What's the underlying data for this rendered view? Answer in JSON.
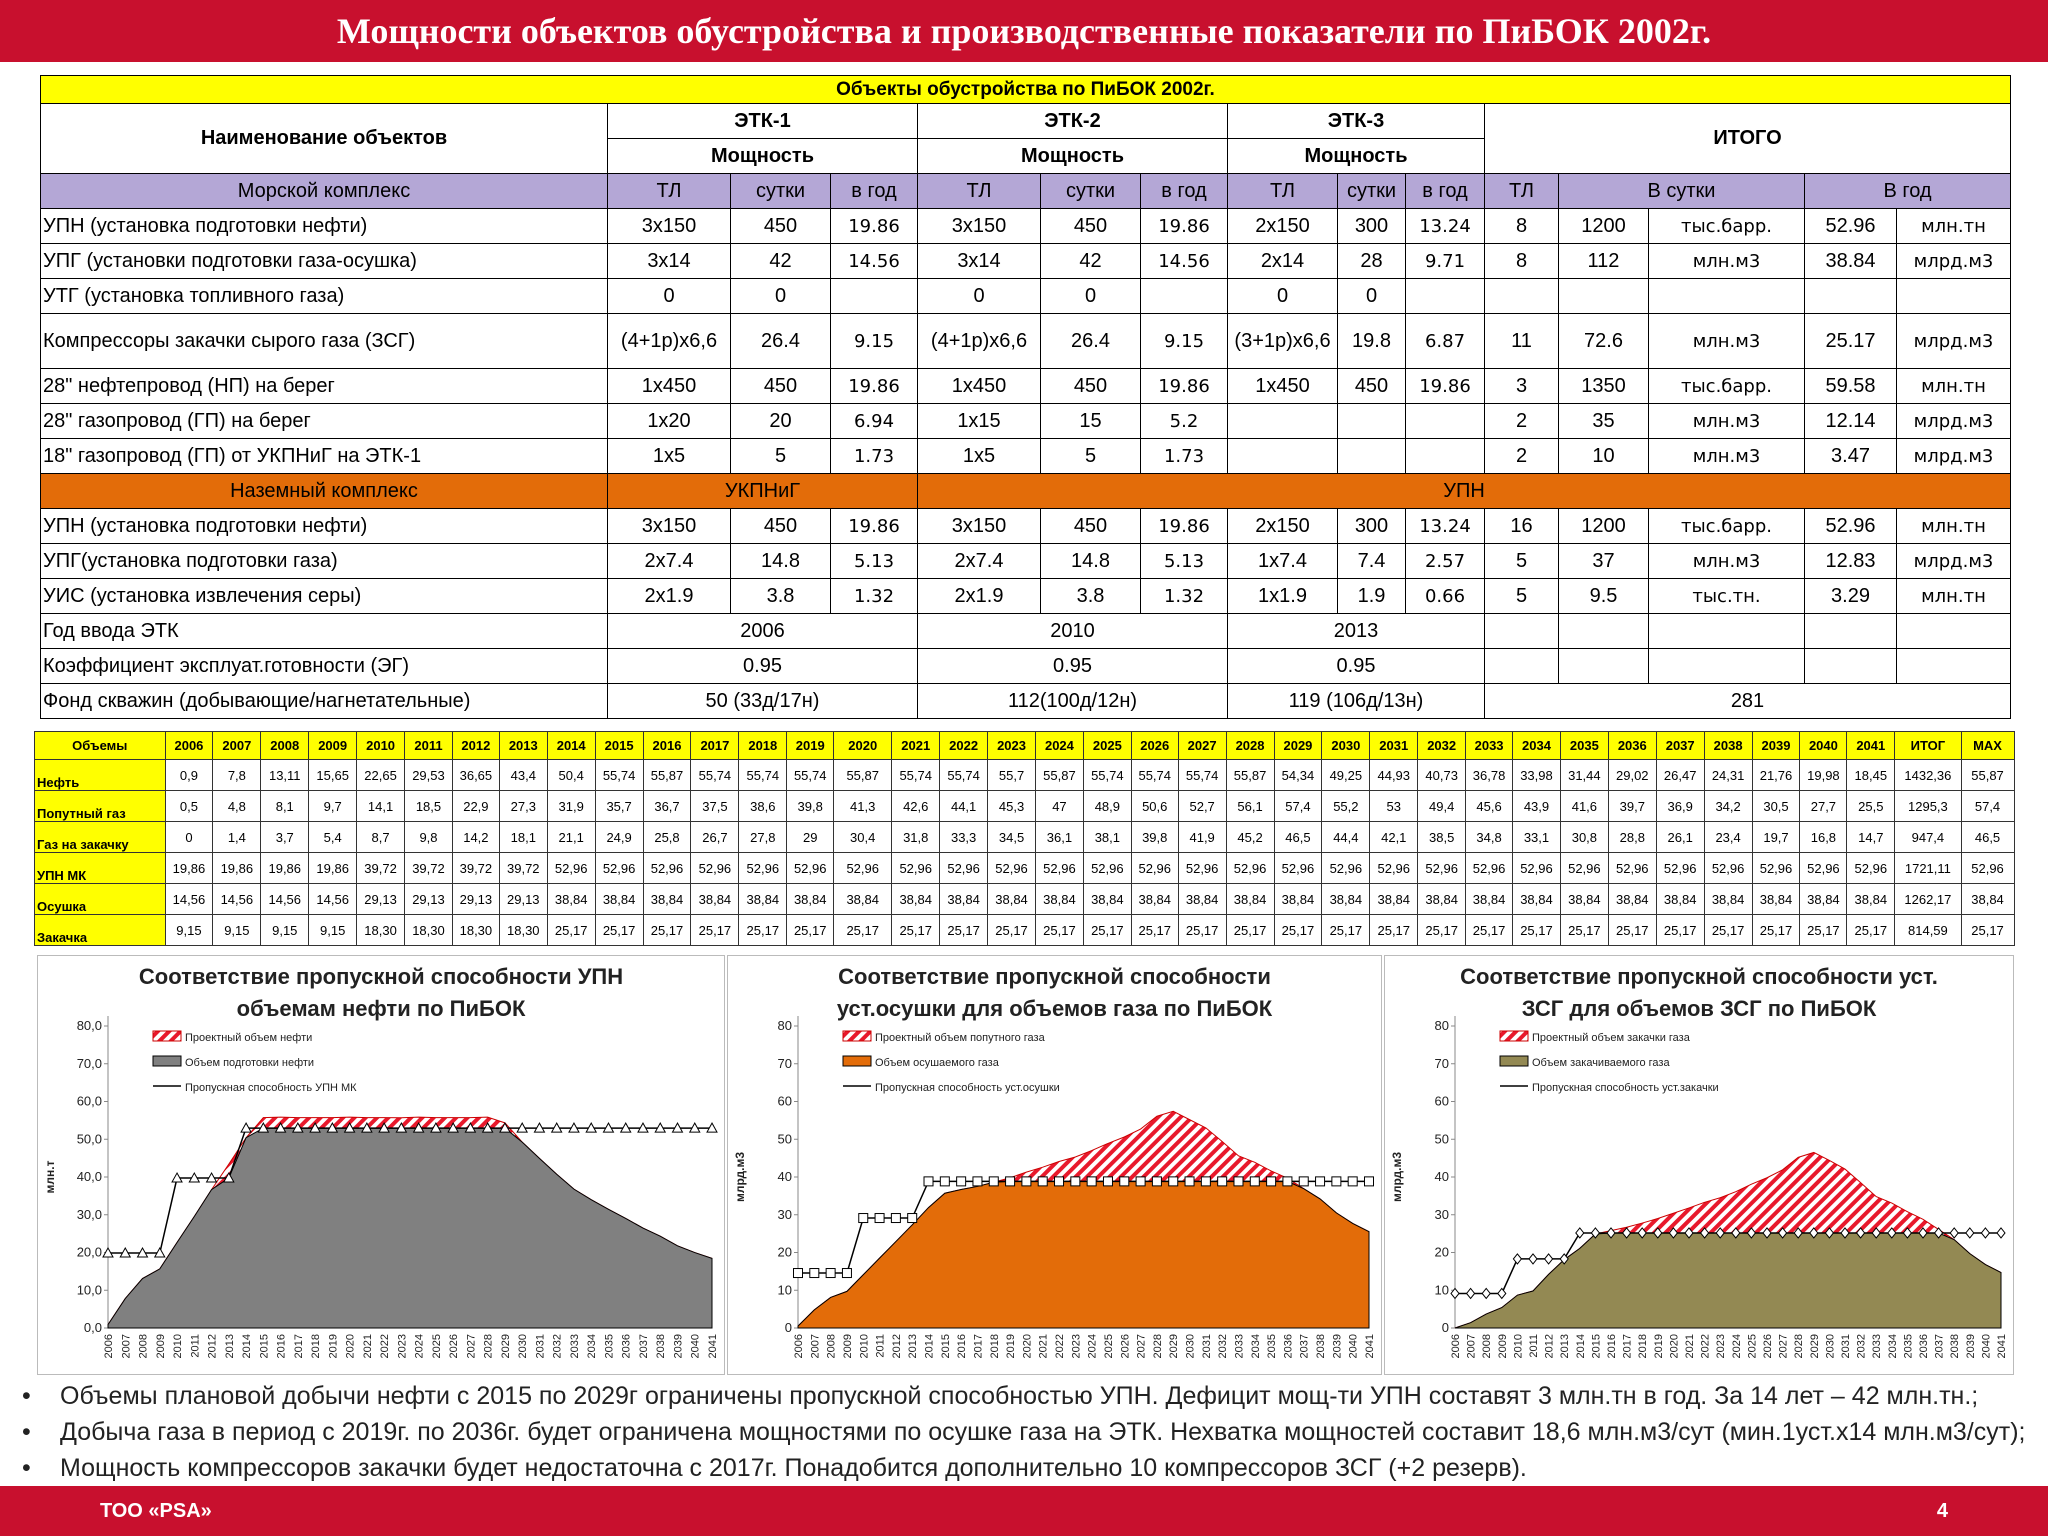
{
  "header": {
    "title": "Мощности объектов обустройства и производственные показатели по ПиБОК  2002г."
  },
  "footer": {
    "company": "ТОО «PSA»",
    "page": "4"
  },
  "objects_table": {
    "caption": "Объекты обустройства по ПиБОК 2002г.",
    "name_header": "Наименование объектов",
    "etk1": "ЭТК-1",
    "etk2": "ЭТК-2",
    "etk3": "ЭТК-3",
    "total": "ИТОГО",
    "power": "Мощность",
    "sea_complex": "Морской комплекс",
    "col_tl": "ТЛ",
    "col_day": "сутки",
    "col_year": "в год",
    "col_total_day": "В сутки",
    "col_total_year": "В год",
    "sea_rows": [
      {
        "name": "УПН (установка подготовки нефти)",
        "c": [
          "3х150",
          "450",
          "19.86",
          "3х150",
          "450",
          "19.86",
          "2х150",
          "300",
          "13.24",
          "8",
          "1200",
          "тыс.барр.",
          "52.96",
          "млн.тн"
        ]
      },
      {
        "name": "УПГ (установки подготовки газа-осушка)",
        "c": [
          "3х14",
          "42",
          "14.56",
          "3х14",
          "42",
          "14.56",
          "2х14",
          "28",
          "9.71",
          "8",
          "112",
          "млн.м3",
          "38.84",
          "млрд.м3"
        ]
      },
      {
        "name": "УТГ (установка топливного газа)",
        "c": [
          "0",
          "0",
          "",
          "0",
          "0",
          "",
          "0",
          "0",
          "",
          "",
          "",
          "",
          "",
          ""
        ]
      },
      {
        "name": "Компрессоры  закачки сырого газа (ЗСГ)",
        "c": [
          "(4+1р)х6,6",
          "26.4",
          "9.15",
          "(4+1р)х6,6",
          "26.4",
          "9.15",
          "(3+1р)х6,6",
          "19.8",
          "6.87",
          "11",
          "72.6",
          "млн.м3",
          "25.17",
          "млрд.м3"
        ]
      },
      {
        "name": "28\" нефтепровод (НП) на берег",
        "c": [
          "1х450",
          "450",
          "19.86",
          "1х450",
          "450",
          "19.86",
          "1х450",
          "450",
          "19.86",
          "3",
          "1350",
          "тыс.барр.",
          "59.58",
          "млн.тн"
        ]
      },
      {
        "name": "28\" газопровод (ГП) на берег",
        "c": [
          "1х20",
          "20",
          "6.94",
          "1х15",
          "15",
          "5.2",
          "",
          "",
          "",
          "2",
          "35",
          "млн.м3",
          "12.14",
          "млрд.м3"
        ]
      },
      {
        "name": "18\" газопровод (ГП) от УКПНиГ на ЭТК-1",
        "c": [
          "1х5",
          "5",
          "1.73",
          "1х5",
          "5",
          "1.73",
          "",
          "",
          "",
          "2",
          "10",
          "млн.м3",
          "3.47",
          "млрд.м3"
        ]
      }
    ],
    "land_complex": "Наземный комплекс",
    "land_ukpnig": "УКПНиГ",
    "land_upn": "УПН",
    "land_rows": [
      {
        "name": "УПН (установка подготовки нефти)",
        "c": [
          "3х150",
          "450",
          "19.86",
          "3х150",
          "450",
          "19.86",
          "2х150",
          "300",
          "13.24",
          "16",
          "1200",
          "тыс.барр.",
          "52.96",
          "млн.тн"
        ]
      },
      {
        "name": "УПГ(установка подготовки газа)",
        "c": [
          "2х7.4",
          "14.8",
          "5.13",
          "2х7.4",
          "14.8",
          "5.13",
          "1х7.4",
          "7.4",
          "2.57",
          "5",
          "37",
          "млн.м3",
          "12.83",
          "млрд.м3"
        ]
      },
      {
        "name": "УИС (установка извлечения серы)",
        "c": [
          "2х1.9",
          "3.8",
          "1.32",
          "2х1.9",
          "3.8",
          "1.32",
          "1х1.9",
          "1.9",
          "0.66",
          "5",
          "9.5",
          "тыс.тн.",
          "3.29",
          "млн.тн"
        ]
      }
    ],
    "year_row": {
      "name": "Год ввода ЭТК",
      "v": [
        "2006",
        "2010",
        "2013"
      ]
    },
    "coef_row": {
      "name": "Коэффициент эксплуат.готовности (ЭГ)",
      "v": [
        "0.95",
        "0.95",
        "0.95"
      ]
    },
    "wells_row": {
      "name": "Фонд скважин (добывающие/нагнетательные)",
      "v": [
        "50 (33д/17н)",
        "112(100д/12н)",
        "119 (106д/13н)",
        "281"
      ]
    }
  },
  "volumes_table": {
    "header": [
      "Объемы",
      "2006",
      "2007",
      "2008",
      "2009",
      "2010",
      "2011",
      "2012",
      "2013",
      "2014",
      "2015",
      "2016",
      "2017",
      "2018",
      "2019",
      "2020",
      "2021",
      "2022",
      "2023",
      "2024",
      "2025",
      "2026",
      "2027",
      "2028",
      "2029",
      "2030",
      "2031",
      "2032",
      "2033",
      "2034",
      "2035",
      "2036",
      "2037",
      "2038",
      "2039",
      "2040",
      "2041",
      "ИТОГ",
      "MAX"
    ],
    "rows": [
      {
        "label": "Нефть",
        "v": [
          "0,9",
          "7,8",
          "13,11",
          "15,65",
          "22,65",
          "29,53",
          "36,65",
          "43,4",
          "50,4",
          "55,74",
          "55,87",
          "55,74",
          "55,74",
          "55,74",
          "55,87",
          "55,74",
          "55,74",
          "55,7",
          "55,87",
          "55,74",
          "55,74",
          "55,74",
          "55,87",
          "54,34",
          "49,25",
          "44,93",
          "40,73",
          "36,78",
          "33,98",
          "31,44",
          "29,02",
          "26,47",
          "24,31",
          "21,76",
          "19,98",
          "18,45",
          "1432,36",
          "55,87"
        ]
      },
      {
        "label": "Попутный газ",
        "v": [
          "0,5",
          "4,8",
          "8,1",
          "9,7",
          "14,1",
          "18,5",
          "22,9",
          "27,3",
          "31,9",
          "35,7",
          "36,7",
          "37,5",
          "38,6",
          "39,8",
          "41,3",
          "42,6",
          "44,1",
          "45,3",
          "47",
          "48,9",
          "50,6",
          "52,7",
          "56,1",
          "57,4",
          "55,2",
          "53",
          "49,4",
          "45,6",
          "43,9",
          "41,6",
          "39,7",
          "36,9",
          "34,2",
          "30,5",
          "27,7",
          "25,5",
          "1295,3",
          "57,4"
        ]
      },
      {
        "label": "Газ на закачку",
        "v": [
          "0",
          "1,4",
          "3,7",
          "5,4",
          "8,7",
          "9,8",
          "14,2",
          "18,1",
          "21,1",
          "24,9",
          "25,8",
          "26,7",
          "27,8",
          "29",
          "30,4",
          "31,8",
          "33,3",
          "34,5",
          "36,1",
          "38,1",
          "39,8",
          "41,9",
          "45,2",
          "46,5",
          "44,4",
          "42,1",
          "38,5",
          "34,8",
          "33,1",
          "30,8",
          "28,8",
          "26,1",
          "23,4",
          "19,7",
          "16,8",
          "14,7",
          "947,4",
          "46,5"
        ]
      },
      {
        "label": "УПН МК",
        "v": [
          "19,86",
          "19,86",
          "19,86",
          "19,86",
          "39,72",
          "39,72",
          "39,72",
          "39,72",
          "52,96",
          "52,96",
          "52,96",
          "52,96",
          "52,96",
          "52,96",
          "52,96",
          "52,96",
          "52,96",
          "52,96",
          "52,96",
          "52,96",
          "52,96",
          "52,96",
          "52,96",
          "52,96",
          "52,96",
          "52,96",
          "52,96",
          "52,96",
          "52,96",
          "52,96",
          "52,96",
          "52,96",
          "52,96",
          "52,96",
          "52,96",
          "52,96",
          "1721,11",
          "52,96"
        ]
      },
      {
        "label": "Осушка",
        "v": [
          "14,56",
          "14,56",
          "14,56",
          "14,56",
          "29,13",
          "29,13",
          "29,13",
          "29,13",
          "38,84",
          "38,84",
          "38,84",
          "38,84",
          "38,84",
          "38,84",
          "38,84",
          "38,84",
          "38,84",
          "38,84",
          "38,84",
          "38,84",
          "38,84",
          "38,84",
          "38,84",
          "38,84",
          "38,84",
          "38,84",
          "38,84",
          "38,84",
          "38,84",
          "38,84",
          "38,84",
          "38,84",
          "38,84",
          "38,84",
          "38,84",
          "38,84",
          "1262,17",
          "38,84"
        ]
      },
      {
        "label": "Закачка",
        "v": [
          "9,15",
          "9,15",
          "9,15",
          "9,15",
          "18,30",
          "18,30",
          "18,30",
          "18,30",
          "25,17",
          "25,17",
          "25,17",
          "25,17",
          "25,17",
          "25,17",
          "25,17",
          "25,17",
          "25,17",
          "25,17",
          "25,17",
          "25,17",
          "25,17",
          "25,17",
          "25,17",
          "25,17",
          "25,17",
          "25,17",
          "25,17",
          "25,17",
          "25,17",
          "25,17",
          "25,17",
          "25,17",
          "25,17",
          "25,17",
          "25,17",
          "25,17",
          "814,59",
          "25,17"
        ]
      }
    ]
  },
  "chart_data": [
    {
      "type": "area",
      "title": [
        "Соответствие пропускной способности УПН",
        "объемам нефти по ПиБОК"
      ],
      "ylabel": "млн.т",
      "ylim": [
        0,
        80
      ],
      "ytick_labels": [
        "0,0",
        "10,0",
        "20,0",
        "30,0",
        "40,0",
        "50,0",
        "60,0",
        "70,0",
        "80,0"
      ],
      "x": [
        "2006",
        "2007",
        "2008",
        "2009",
        "2010",
        "2011",
        "2012",
        "2013",
        "2014",
        "2015",
        "2016",
        "2017",
        "2018",
        "2019",
        "2020",
        "2021",
        "2022",
        "2023",
        "2024",
        "2025",
        "2026",
        "2027",
        "2028",
        "2029",
        "2030",
        "2031",
        "2032",
        "2033",
        "2034",
        "2035",
        "2036",
        "2037",
        "2038",
        "2039",
        "2040",
        "2041"
      ],
      "legend": [
        "Проектный объем нефти",
        "Объем подготовки нефти",
        "Пропускная способность УПН МК"
      ],
      "design": [
        0.9,
        7.8,
        13.11,
        15.65,
        22.65,
        29.53,
        36.65,
        43.4,
        50.4,
        55.74,
        55.87,
        55.74,
        55.74,
        55.74,
        55.87,
        55.74,
        55.74,
        55.7,
        55.87,
        55.74,
        55.74,
        55.74,
        55.87,
        54.34,
        49.25,
        44.93,
        40.73,
        36.78,
        33.98,
        31.44,
        29.02,
        26.47,
        24.31,
        21.76,
        19.98,
        18.45
      ],
      "capacity": [
        19.86,
        19.86,
        19.86,
        19.86,
        39.72,
        39.72,
        39.72,
        39.72,
        52.96,
        52.96,
        52.96,
        52.96,
        52.96,
        52.96,
        52.96,
        52.96,
        52.96,
        52.96,
        52.96,
        52.96,
        52.96,
        52.96,
        52.96,
        52.96,
        52.96,
        52.96,
        52.96,
        52.96,
        52.96,
        52.96,
        52.96,
        52.96,
        52.96,
        52.96,
        52.96,
        52.96
      ],
      "colors": {
        "fill": "#808080",
        "hatch": "#e8192c",
        "line": "#000000",
        "marker": "triangle"
      }
    },
    {
      "type": "area",
      "title": [
        "Соответствие пропускной способности",
        "уст.осушки для объемов газа по ПиБОК"
      ],
      "ylabel": "млрд.м3",
      "ylim": [
        0,
        80
      ],
      "ytick_labels": [
        "0",
        "10",
        "20",
        "30",
        "40",
        "50",
        "60",
        "70",
        "80"
      ],
      "x": [
        "2006",
        "2007",
        "2008",
        "2009",
        "2010",
        "2011",
        "2012",
        "2013",
        "2014",
        "2015",
        "2016",
        "2017",
        "2018",
        "2019",
        "2020",
        "2021",
        "2022",
        "2023",
        "2024",
        "2025",
        "2026",
        "2027",
        "2028",
        "2029",
        "2030",
        "2031",
        "2032",
        "2033",
        "2034",
        "2035",
        "2036",
        "2037",
        "2038",
        "2039",
        "2040",
        "2041"
      ],
      "legend": [
        "Проектный объем попутного газа",
        "Объем осушаемого газа",
        "Пропускная способность уст.осушки"
      ],
      "design": [
        0.5,
        4.8,
        8.1,
        9.7,
        14.1,
        18.5,
        22.9,
        27.3,
        31.9,
        35.7,
        36.7,
        37.5,
        38.6,
        39.8,
        41.3,
        42.6,
        44.1,
        45.3,
        47,
        48.9,
        50.6,
        52.7,
        56.1,
        57.4,
        55.2,
        53,
        49.4,
        45.6,
        43.9,
        41.6,
        39.7,
        36.9,
        34.2,
        30.5,
        27.7,
        25.5
      ],
      "capacity": [
        14.56,
        14.56,
        14.56,
        14.56,
        29.13,
        29.13,
        29.13,
        29.13,
        38.84,
        38.84,
        38.84,
        38.84,
        38.84,
        38.84,
        38.84,
        38.84,
        38.84,
        38.84,
        38.84,
        38.84,
        38.84,
        38.84,
        38.84,
        38.84,
        38.84,
        38.84,
        38.84,
        38.84,
        38.84,
        38.84,
        38.84,
        38.84,
        38.84,
        38.84,
        38.84,
        38.84
      ],
      "colors": {
        "fill": "#e36c09",
        "hatch": "#e8192c",
        "line": "#000000",
        "marker": "square"
      }
    },
    {
      "type": "area",
      "title": [
        "Соответствие пропускной способности уст.",
        "ЗСГ для объемов ЗСГ по ПиБОК"
      ],
      "ylabel": "млрд.м3",
      "ylim": [
        0,
        80
      ],
      "ytick_labels": [
        "0",
        "10",
        "20",
        "30",
        "40",
        "50",
        "60",
        "70",
        "80"
      ],
      "x": [
        "2006",
        "2007",
        "2008",
        "2009",
        "2010",
        "2011",
        "2012",
        "2013",
        "2014",
        "2015",
        "2016",
        "2017",
        "2018",
        "2019",
        "2020",
        "2021",
        "2022",
        "2023",
        "2024",
        "2025",
        "2026",
        "2027",
        "2028",
        "2029",
        "2030",
        "2031",
        "2032",
        "2033",
        "2034",
        "2035",
        "2036",
        "2037",
        "2038",
        "2039",
        "2040",
        "2041"
      ],
      "legend": [
        "Проектный объем закачки газа",
        "Объем закачиваемого газа",
        "Пропускная способность уст.закачки"
      ],
      "design": [
        0,
        1.4,
        3.7,
        5.4,
        8.7,
        9.8,
        14.2,
        18.1,
        21.1,
        24.9,
        25.8,
        26.7,
        27.8,
        29,
        30.4,
        31.8,
        33.3,
        34.5,
        36.1,
        38.1,
        39.8,
        41.9,
        45.2,
        46.5,
        44.4,
        42.1,
        38.5,
        34.8,
        33.1,
        30.8,
        28.8,
        26.1,
        23.4,
        19.7,
        16.8,
        14.7
      ],
      "capacity": [
        9.15,
        9.15,
        9.15,
        9.15,
        18.3,
        18.3,
        18.3,
        18.3,
        25.17,
        25.17,
        25.17,
        25.17,
        25.17,
        25.17,
        25.17,
        25.17,
        25.17,
        25.17,
        25.17,
        25.17,
        25.17,
        25.17,
        25.17,
        25.17,
        25.17,
        25.17,
        25.17,
        25.17,
        25.17,
        25.17,
        25.17,
        25.17,
        25.17,
        25.17,
        25.17,
        25.17
      ],
      "colors": {
        "fill": "#938953",
        "hatch": "#e8192c",
        "line": "#000000",
        "marker": "diamond"
      }
    }
  ],
  "notes": [
    "Объемы плановой добычи нефти  с 2015 по 2029г ограничены пропускной способностью УПН. Дефицит мощ-ти УПН составят 3 млн.тн в год. За 14 лет – 42 млн.тн.;",
    "Добыча газа в период с 2019г. по 2036г. будет ограничена мощностями по осушке газа на ЭТК. Нехватка  мощностей  составит 18,6 млн.м3/сут (мин.1уст.х14 млн.м3/сут);",
    "Мощность компрессоров закачки будет недостаточна с 2017г. Понадобится дополнительно 10 компрессоров ЗСГ (+2 резерв)."
  ],
  "bullet": "•"
}
